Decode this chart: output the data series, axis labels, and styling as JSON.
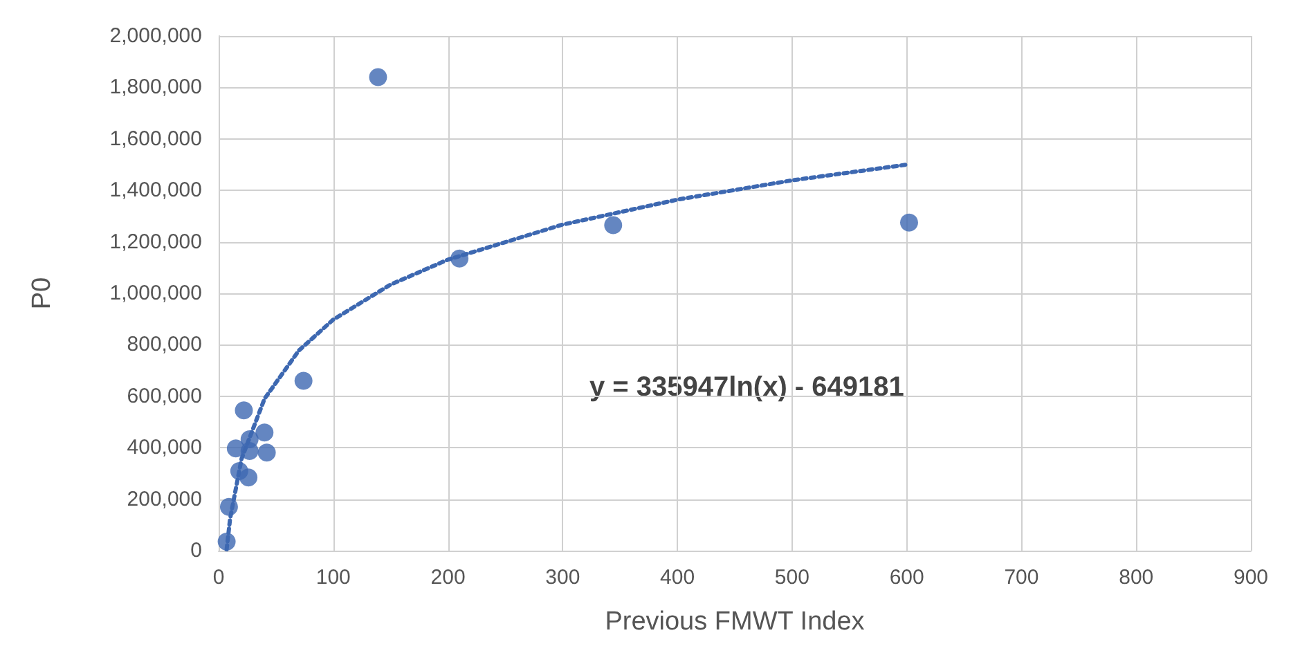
{
  "chart_data": {
    "type": "scatter",
    "xlabel": "Previous FMWT Index",
    "ylabel": "P0",
    "series": [
      {
        "marker": "circle",
        "color": "#3d68b1",
        "x": [
          7,
          9,
          15,
          22,
          18,
          26,
          27,
          27,
          40,
          42,
          74,
          139,
          210,
          344,
          602
        ],
        "values": [
          35000,
          170000,
          397000,
          545000,
          309000,
          284000,
          433000,
          387000,
          459000,
          381000,
          660000,
          1840000,
          1135000,
          1265000,
          1275000
        ]
      },
      {
        "type": "line",
        "color": "#3d68b1",
        "line_style": "dotted",
        "x": [
          7,
          10,
          20,
          40,
          70,
          100,
          150,
          200,
          300,
          400,
          500,
          600
        ],
        "values": [
          5000,
          124000,
          357000,
          590000,
          778000,
          898000,
          1034000,
          1131000,
          1267000,
          1364000,
          1439000,
          1500000
        ]
      }
    ],
    "annotations": [
      "y = 335947ln(x) - 649181"
    ],
    "xlim": [
      0,
      900
    ],
    "xticks": [
      0,
      100,
      200,
      300,
      400,
      500,
      600,
      700,
      800,
      900
    ],
    "ylim": [
      0,
      2000000
    ],
    "yticks": [
      0,
      {
        "value": 200000,
        "label": "200,000"
      },
      {
        "value": 400000,
        "label": "400,000"
      },
      {
        "value": 600000,
        "label": "600,000"
      },
      {
        "value": 800000,
        "label": "800,000"
      },
      {
        "value": 1000000,
        "label": "1,000,000"
      },
      {
        "value": 1200000,
        "label": "1,200,000"
      },
      {
        "value": 1400000,
        "label": "1,400,000"
      },
      {
        "value": 1600000,
        "label": "1,600,000"
      },
      {
        "value": 1800000,
        "label": "1,800,000"
      },
      {
        "value": 2000000,
        "label": "2,000,000"
      }
    ],
    "grid": true
  }
}
